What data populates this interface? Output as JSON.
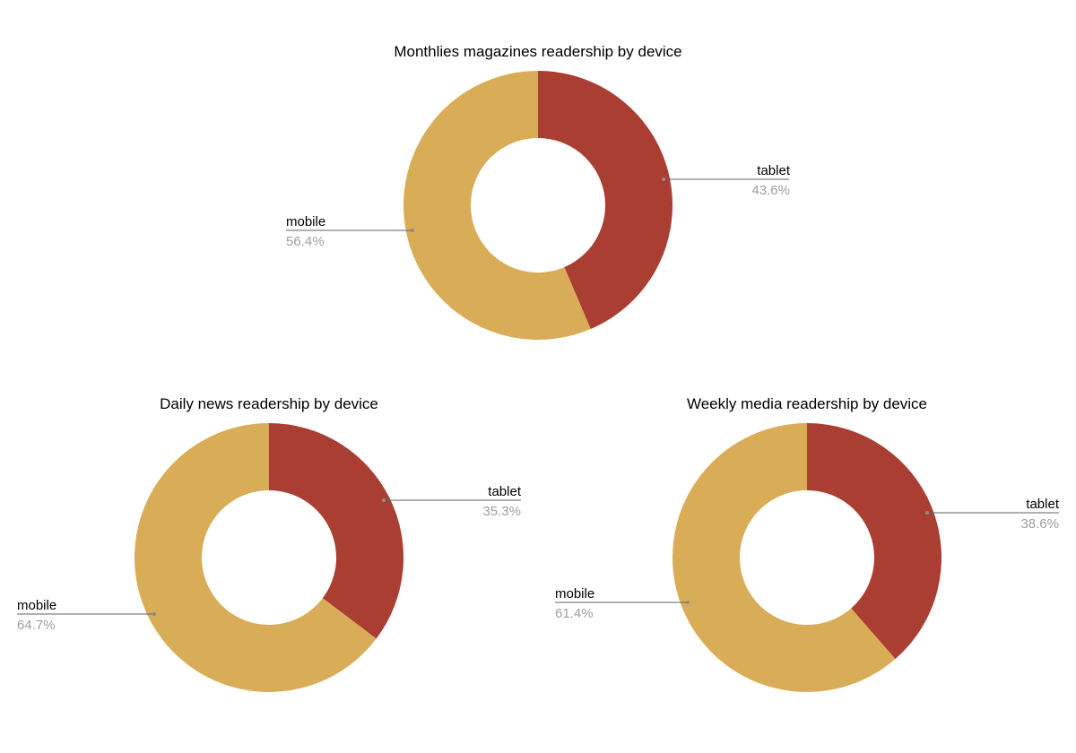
{
  "chart_data": [
    {
      "type": "pie",
      "title": "Monthlies magazines readership by device",
      "donut": true,
      "categories": [
        "tablet",
        "mobile"
      ],
      "values": [
        43.6,
        56.4
      ],
      "value_labels": [
        "43.6%",
        "56.4%"
      ],
      "colors": [
        "#aa3e33",
        "#d9ad57"
      ],
      "start_angle_deg": 0,
      "direction": "clockwise"
    },
    {
      "type": "pie",
      "title": "Daily news readership by device",
      "donut": true,
      "categories": [
        "tablet",
        "mobile"
      ],
      "values": [
        35.3,
        64.7
      ],
      "value_labels": [
        "35.3%",
        "64.7%"
      ],
      "colors": [
        "#aa3e33",
        "#d9ad57"
      ],
      "start_angle_deg": 0,
      "direction": "clockwise"
    },
    {
      "type": "pie",
      "title": "Weekly media readership by device",
      "donut": true,
      "categories": [
        "tablet",
        "mobile"
      ],
      "values": [
        38.6,
        61.4
      ],
      "value_labels": [
        "38.6%",
        "61.4%"
      ],
      "colors": [
        "#aa3e33",
        "#d9ad57"
      ],
      "start_angle_deg": 0,
      "direction": "clockwise"
    }
  ]
}
